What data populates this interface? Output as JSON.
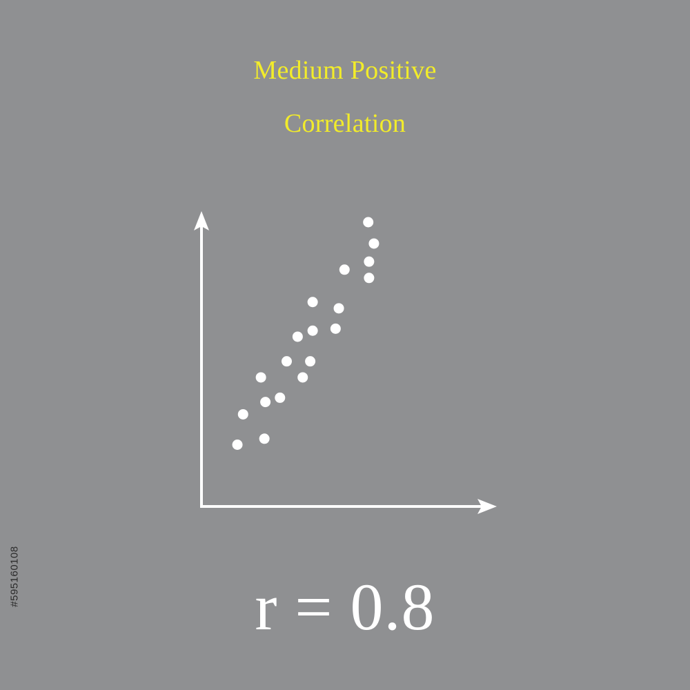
{
  "title_line_1": "Medium Positive",
  "title_line_2": "Correlation",
  "formula": "r = 0.8",
  "side_id": "#595160108",
  "colors": {
    "background": "#8f9092",
    "title": "#f2ec2a",
    "foreground": "#ffffff",
    "side_id": "#2b2b2b"
  },
  "chart_data": {
    "type": "scatter",
    "title": "Medium Positive Correlation",
    "xlabel": "",
    "ylabel": "",
    "xlim": [
      0,
      100
    ],
    "ylim": [
      0,
      100
    ],
    "grid": false,
    "legend": "none",
    "series": [
      {
        "x": [
          7.5,
          10.3,
          20.8,
          21.3,
          19.1,
          28.5,
          31.8,
          39.7,
          37.2,
          43.4,
          44.6,
          44.6,
          55.9,
          57.5,
          60.3,
          72.4,
          72.4,
          74.8,
          72.0
        ],
        "y": [
          11.4,
          23.5,
          13.8,
          28.4,
          38.2,
          30.1,
          44.6,
          38.2,
          54.4,
          44.6,
          56.8,
          68.2,
          57.6,
          65.7,
          81.1,
          77.8,
          84.3,
          91.5,
          100.0
        ]
      }
    ]
  }
}
